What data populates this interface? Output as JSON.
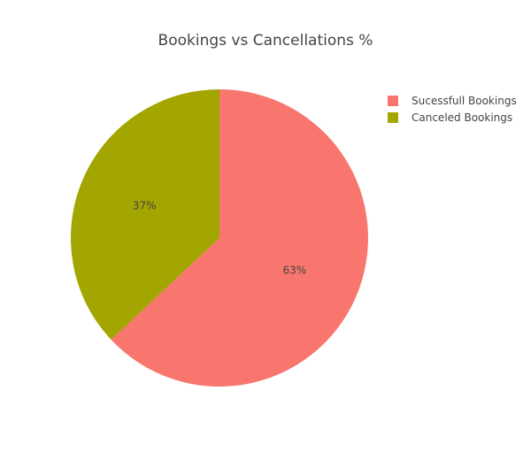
{
  "chart_data": {
    "type": "pie",
    "title": "Bookings vs Cancellations %",
    "categories": [
      "Sucessfull Bookings",
      "Canceled Bookings"
    ],
    "values": [
      63,
      37
    ],
    "value_labels": [
      "63%",
      "37%"
    ],
    "colors": [
      "#f8766d",
      "#a3a500"
    ],
    "direction": "clockwise",
    "start": "top",
    "legend": {
      "placement": "top-right",
      "entries": [
        "Sucessfull Bookings",
        "Canceled Bookings"
      ]
    }
  }
}
